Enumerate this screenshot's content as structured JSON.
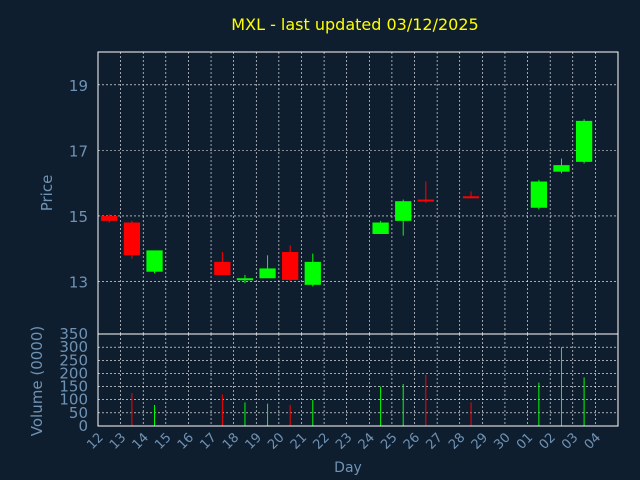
{
  "chart_data": {
    "type": "candlestick",
    "title": "MXL - last updated 03/12/2025",
    "title_color": "#ffff00",
    "background": "#0f1e2e",
    "plot_background": "#0f1e2e",
    "axis_color": "#ffffff",
    "grid_color": "#ffffff",
    "grid": true,
    "grid_style": "dotted",
    "label_color": "#6f93b5",
    "tick_color": "#6f93b5",
    "up_color": "#00ff00",
    "down_color": "#ff0000",
    "xlabel": "Day",
    "x_ticks": [
      "12",
      "13",
      "14",
      "15",
      "16",
      "17",
      "18",
      "19",
      "20",
      "21",
      "22",
      "23",
      "24",
      "25",
      "26",
      "27",
      "28",
      "29",
      "30",
      "01",
      "02",
      "03",
      "04"
    ],
    "price_panel": {
      "ylabel": "Price",
      "ylim": [
        11.4,
        20.0
      ],
      "y_ticks": [
        13,
        15,
        17,
        19
      ],
      "candles": [
        {
          "day": "12",
          "open": 15.0,
          "high": 15.05,
          "low": 14.8,
          "close": 14.85
        },
        {
          "day": "13",
          "open": 14.8,
          "high": 14.85,
          "low": 13.7,
          "close": 13.8
        },
        {
          "day": "14",
          "open": 13.3,
          "high": 13.95,
          "low": 13.25,
          "close": 13.95
        },
        {
          "day": "17",
          "open": 13.6,
          "high": 13.9,
          "low": 13.2,
          "close": 13.2
        },
        {
          "day": "18",
          "open": 13.05,
          "high": 13.2,
          "low": 12.95,
          "close": 13.1
        },
        {
          "day": "19",
          "open": 13.1,
          "high": 13.8,
          "low": 13.1,
          "close": 13.4
        },
        {
          "day": "20",
          "open": 13.9,
          "high": 14.1,
          "low": 13.0,
          "close": 13.05
        },
        {
          "day": "21",
          "open": 12.9,
          "high": 13.85,
          "low": 12.85,
          "close": 13.6
        },
        {
          "day": "24",
          "open": 14.45,
          "high": 14.85,
          "low": 14.45,
          "close": 14.8
        },
        {
          "day": "25",
          "open": 14.85,
          "high": 15.5,
          "low": 14.4,
          "close": 15.45
        },
        {
          "day": "26",
          "open": 15.5,
          "high": 16.05,
          "low": 15.4,
          "close": 15.45
        },
        {
          "day": "28",
          "open": 15.6,
          "high": 15.75,
          "low": 15.55,
          "close": 15.55
        },
        {
          "day": "01",
          "open": 15.25,
          "high": 16.1,
          "low": 15.2,
          "close": 16.05
        },
        {
          "day": "02",
          "open": 16.35,
          "high": 16.75,
          "low": 16.3,
          "close": 16.55
        },
        {
          "day": "03",
          "open": 16.65,
          "high": 17.95,
          "low": 16.6,
          "close": 17.9
        }
      ]
    },
    "volume_panel": {
      "ylabel": "Volume (0000)",
      "ylim": [
        0,
        350
      ],
      "y_ticks": [
        0,
        50,
        100,
        150,
        200,
        250,
        300,
        350
      ],
      "bars": [
        {
          "day": "12",
          "value": 0,
          "up": false
        },
        {
          "day": "13",
          "value": 125,
          "up": false
        },
        {
          "day": "14",
          "value": 80,
          "up": true
        },
        {
          "day": "17",
          "value": 120,
          "up": false
        },
        {
          "day": "18",
          "value": 90,
          "up": true
        },
        {
          "day": "19",
          "value": 85,
          "up": true
        },
        {
          "day": "20",
          "value": 80,
          "up": false
        },
        {
          "day": "21",
          "value": 100,
          "up": true
        },
        {
          "day": "24",
          "value": 150,
          "up": true
        },
        {
          "day": "25",
          "value": 160,
          "up": true
        },
        {
          "day": "26",
          "value": 195,
          "up": false
        },
        {
          "day": "28",
          "value": 90,
          "up": false
        },
        {
          "day": "01",
          "value": 165,
          "up": true
        },
        {
          "day": "02",
          "value": 300,
          "up": true
        },
        {
          "day": "03",
          "value": 185,
          "up": true
        }
      ]
    }
  }
}
